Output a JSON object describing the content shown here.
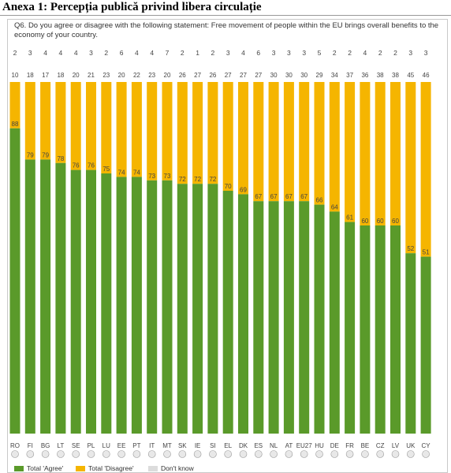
{
  "heading": "Anexa 1: Percepția publică privind libera circulație",
  "question": "Q6. Do you agree or disagree with the following statement: Free movement of people within the EU brings overall benefits to the economy of your country.",
  "colors": {
    "agree": "#5a9a2a",
    "disagree": "#f5b500",
    "dontknow": "#dcdcdc"
  },
  "legend": [
    {
      "label": "Total 'Agree'",
      "color": "#5a9a2a"
    },
    {
      "label": "Total 'Disagree'",
      "color": "#f5b500"
    },
    {
      "label": "Don't know",
      "color": "#dcdcdc"
    }
  ],
  "chart_data": {
    "type": "bar",
    "stacked": true,
    "categories": [
      "RO",
      "FI",
      "BG",
      "LT",
      "SE",
      "PL",
      "LU",
      "EE",
      "PT",
      "IT",
      "MT",
      "SK",
      "IE",
      "SI",
      "EL",
      "DK",
      "ES",
      "NL",
      "AT",
      "EU27",
      "HU",
      "DE",
      "FR",
      "BE",
      "CZ",
      "LV",
      "UK",
      "CY"
    ],
    "series": [
      {
        "name": "Total 'Agree'",
        "values": [
          88,
          79,
          79,
          78,
          76,
          76,
          75,
          74,
          74,
          73,
          73,
          72,
          72,
          72,
          70,
          69,
          67,
          67,
          67,
          67,
          66,
          64,
          61,
          60,
          60,
          60,
          52,
          51
        ]
      },
      {
        "name": "Total 'Disagree'",
        "values": [
          10,
          18,
          17,
          18,
          20,
          21,
          23,
          20,
          22,
          23,
          20,
          26,
          27,
          26,
          27,
          27,
          27,
          30,
          30,
          30,
          29,
          34,
          37,
          36,
          38,
          38,
          45,
          46
        ]
      },
      {
        "name": "Don't know",
        "values": [
          2,
          3,
          4,
          4,
          4,
          3,
          2,
          6,
          4,
          4,
          7,
          2,
          1,
          2,
          3,
          4,
          6,
          3,
          3,
          3,
          5,
          2,
          2,
          4,
          2,
          2,
          3,
          3
        ]
      }
    ],
    "ylim": [
      0,
      100
    ],
    "legend_position": "bottom-left",
    "grid": false
  }
}
